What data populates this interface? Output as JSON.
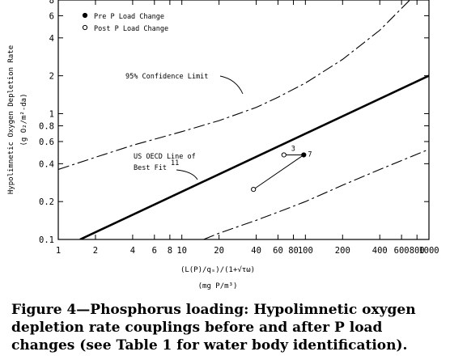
{
  "chart_data": {
    "type": "scatter",
    "x_scale": "log",
    "y_scale": "log",
    "xlim": [
      1,
      1000
    ],
    "ylim": [
      0.1,
      8
    ],
    "x_ticks": [
      {
        "value": 1,
        "label": "1"
      },
      {
        "value": 2,
        "label": "2"
      },
      {
        "value": 4,
        "label": "4"
      },
      {
        "value": 6,
        "label": "6"
      },
      {
        "value": 8,
        "label": "8"
      },
      {
        "value": 10,
        "label": "10"
      },
      {
        "value": 20,
        "label": "20"
      },
      {
        "value": 40,
        "label": "40"
      },
      {
        "value": 60,
        "label": "60"
      },
      {
        "value": 80,
        "label": "80"
      },
      {
        "value": 100,
        "label": "100"
      },
      {
        "value": 200,
        "label": "200"
      },
      {
        "value": 400,
        "label": "400"
      },
      {
        "value": 600,
        "label": "600"
      },
      {
        "value": 800,
        "label": "800"
      },
      {
        "value": 1000,
        "label": "1000"
      }
    ],
    "y_ticks": [
      {
        "value": 0.1,
        "label": "0.1"
      },
      {
        "value": 0.2,
        "label": "0.2"
      },
      {
        "value": 0.4,
        "label": "0.4"
      },
      {
        "value": 0.6,
        "label": "0.6"
      },
      {
        "value": 0.8,
        "label": "0.8"
      },
      {
        "value": 1,
        "label": "1"
      },
      {
        "value": 2,
        "label": "2"
      },
      {
        "value": 4,
        "label": "4"
      },
      {
        "value": 6,
        "label": "6"
      },
      {
        "value": 8,
        "label": "8"
      }
    ],
    "ylabel": "Hypolimnetic Oxygen Depletion Rate",
    "ylabel_units": "(g O₂/m²-da)",
    "xlabel": "(L(P)/qₛ)/(1+√τω)",
    "xlabel_units": "(mg P/m³)",
    "legend": {
      "position": "top-left",
      "entries": [
        {
          "label": "Pre P Load Change",
          "marker": "filled-circle"
        },
        {
          "label": "Post P Load Change",
          "marker": "open-circle"
        }
      ]
    },
    "lines": [
      {
        "name": "US OECD Line of Best Fit",
        "label": "US OECD Line of Best Fit",
        "label_line1": "US OECD Line of",
        "label_line2": "Best Fit",
        "superscript": "11",
        "style": "solid-thick",
        "x": [
          1.5,
          1000
        ],
        "y": [
          0.1,
          2.0
        ]
      },
      {
        "name": "95% Confidence Limit upper",
        "label": "95% Confidence Limit",
        "style": "dashed",
        "x": [
          1,
          2,
          4,
          10,
          20,
          40,
          60,
          100,
          200,
          400,
          700
        ],
        "y": [
          0.36,
          0.45,
          0.56,
          0.72,
          0.88,
          1.12,
          1.35,
          1.75,
          2.7,
          4.6,
          8
        ]
      },
      {
        "name": "95% Confidence Limit lower",
        "style": "dashed",
        "x": [
          15,
          20,
          40,
          60,
          100,
          200,
          400,
          1000
        ],
        "y": [
          0.1,
          0.112,
          0.142,
          0.165,
          0.2,
          0.27,
          0.36,
          0.52
        ]
      }
    ],
    "points": [
      {
        "series": "Pre P Load Change",
        "marker": "filled",
        "x": 97,
        "y": 0.47,
        "label": "7"
      },
      {
        "series": "Post P Load Change",
        "marker": "open",
        "x": 67,
        "y": 0.47,
        "label": "3"
      },
      {
        "series": "Post P Load Change",
        "marker": "open",
        "x": 38,
        "y": 0.25
      }
    ],
    "connectors": [
      {
        "x": [
          97,
          67
        ],
        "y": [
          0.47,
          0.47
        ]
      },
      {
        "x": [
          97,
          38
        ],
        "y": [
          0.47,
          0.25
        ]
      }
    ]
  },
  "caption": "Figure 4—Phosphorus loading: Hypolimnetic oxygen depletion rate couplings before and after P load changes (see Table 1 for water body identification)."
}
